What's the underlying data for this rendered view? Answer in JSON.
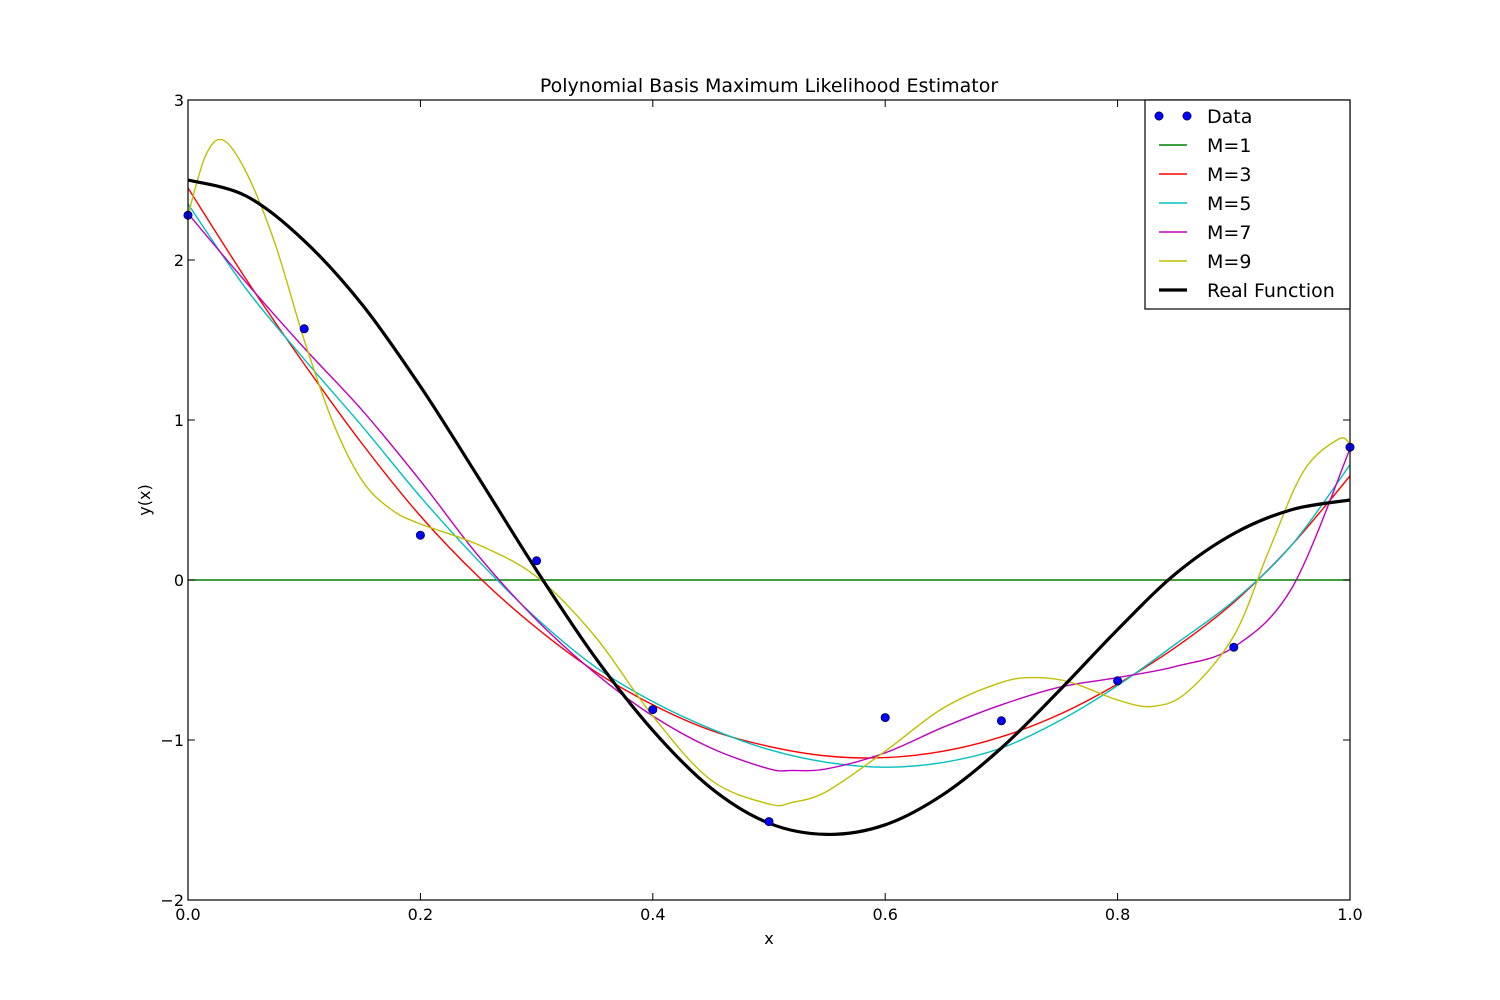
{
  "chart_data": {
    "type": "line",
    "title": "Polynomial Basis Maximum Likelihood Estimator",
    "xlabel": "x",
    "ylabel": "y(x)",
    "xlim": [
      0.0,
      1.0
    ],
    "ylim": [
      -2,
      3
    ],
    "xticks": [
      0.0,
      0.2,
      0.4,
      0.6,
      0.8,
      1.0
    ],
    "xtick_labels": [
      "0.0",
      "0.2",
      "0.4",
      "0.6",
      "0.8",
      "1.0"
    ],
    "yticks": [
      -2,
      -1,
      0,
      1,
      2,
      3
    ],
    "ytick_labels": [
      "−2",
      "−1",
      "0",
      "1",
      "2",
      "3"
    ],
    "grid": false,
    "legend_position": "top-right",
    "data_points": {
      "name": "Data",
      "color": "#0000ff",
      "x": [
        0.0,
        0.1,
        0.2,
        0.3,
        0.4,
        0.5,
        0.6,
        0.7,
        0.8,
        0.9,
        1.0
      ],
      "y": [
        2.28,
        1.57,
        0.28,
        0.12,
        -0.81,
        -1.51,
        -0.86,
        -0.88,
        -0.63,
        -0.42,
        0.83
      ]
    },
    "series": [
      {
        "name": "M=1",
        "color": "#008000",
        "x": [
          0.0,
          1.0
        ],
        "y": [
          0.0,
          0.0
        ]
      },
      {
        "name": "M=3",
        "color": "#ff0000",
        "x": [
          0.0,
          0.05,
          0.1,
          0.15,
          0.2,
          0.25,
          0.3,
          0.35,
          0.4,
          0.45,
          0.5,
          0.55,
          0.6,
          0.65,
          0.7,
          0.75,
          0.8,
          0.85,
          0.9,
          0.95,
          1.0
        ],
        "y": [
          2.45,
          1.88,
          1.35,
          0.85,
          0.4,
          0.02,
          -0.3,
          -0.57,
          -0.78,
          -0.94,
          -1.04,
          -1.1,
          -1.11,
          -1.07,
          -0.98,
          -0.84,
          -0.65,
          -0.42,
          -0.14,
          0.22,
          0.65
        ]
      },
      {
        "name": "M=5",
        "color": "#00bfbf",
        "x": [
          0.0,
          0.05,
          0.1,
          0.15,
          0.2,
          0.25,
          0.3,
          0.35,
          0.4,
          0.45,
          0.5,
          0.55,
          0.6,
          0.65,
          0.7,
          0.75,
          0.8,
          0.85,
          0.9,
          0.95,
          1.0
        ],
        "y": [
          2.35,
          1.82,
          1.38,
          0.96,
          0.52,
          0.12,
          -0.24,
          -0.54,
          -0.76,
          -0.93,
          -1.06,
          -1.14,
          -1.17,
          -1.14,
          -1.05,
          -0.88,
          -0.66,
          -0.4,
          -0.13,
          0.22,
          0.72
        ]
      },
      {
        "name": "M=7",
        "color": "#bf00bf",
        "x": [
          0.0,
          0.05,
          0.1,
          0.15,
          0.2,
          0.25,
          0.3,
          0.35,
          0.4,
          0.45,
          0.5,
          0.52,
          0.55,
          0.6,
          0.65,
          0.7,
          0.75,
          0.8,
          0.85,
          0.9,
          0.95,
          1.0
        ],
        "y": [
          2.29,
          1.86,
          1.45,
          1.06,
          0.62,
          0.15,
          -0.25,
          -0.58,
          -0.85,
          -1.05,
          -1.18,
          -1.19,
          -1.18,
          -1.08,
          -0.92,
          -0.78,
          -0.67,
          -0.61,
          -0.54,
          -0.42,
          -0.05,
          0.82
        ]
      },
      {
        "name": "M=9",
        "color": "#bfbf00",
        "x": [
          0.0,
          0.015,
          0.03,
          0.05,
          0.075,
          0.1,
          0.125,
          0.15,
          0.175,
          0.2,
          0.25,
          0.3,
          0.35,
          0.4,
          0.45,
          0.5,
          0.52,
          0.55,
          0.6,
          0.65,
          0.7,
          0.73,
          0.76,
          0.8,
          0.83,
          0.86,
          0.9,
          0.93,
          0.96,
          0.99,
          1.0
        ],
        "y": [
          2.28,
          2.65,
          2.75,
          2.55,
          2.1,
          1.5,
          0.98,
          0.62,
          0.44,
          0.35,
          0.22,
          0.02,
          -0.35,
          -0.85,
          -1.25,
          -1.4,
          -1.39,
          -1.32,
          -1.07,
          -0.8,
          -0.64,
          -0.61,
          -0.64,
          -0.75,
          -0.79,
          -0.7,
          -0.35,
          0.18,
          0.68,
          0.88,
          0.85
        ]
      },
      {
        "name": "Real Function",
        "color": "#000000",
        "x": [
          0.0,
          0.05,
          0.1,
          0.15,
          0.2,
          0.25,
          0.3,
          0.35,
          0.4,
          0.45,
          0.5,
          0.55,
          0.6,
          0.65,
          0.7,
          0.75,
          0.8,
          0.85,
          0.9,
          0.95,
          1.0
        ],
        "y": [
          2.5,
          2.4,
          2.12,
          1.72,
          1.21,
          0.64,
          0.06,
          -0.48,
          -0.94,
          -1.3,
          -1.52,
          -1.59,
          -1.53,
          -1.34,
          -1.05,
          -0.69,
          -0.31,
          0.04,
          0.29,
          0.44,
          0.5
        ]
      }
    ]
  }
}
